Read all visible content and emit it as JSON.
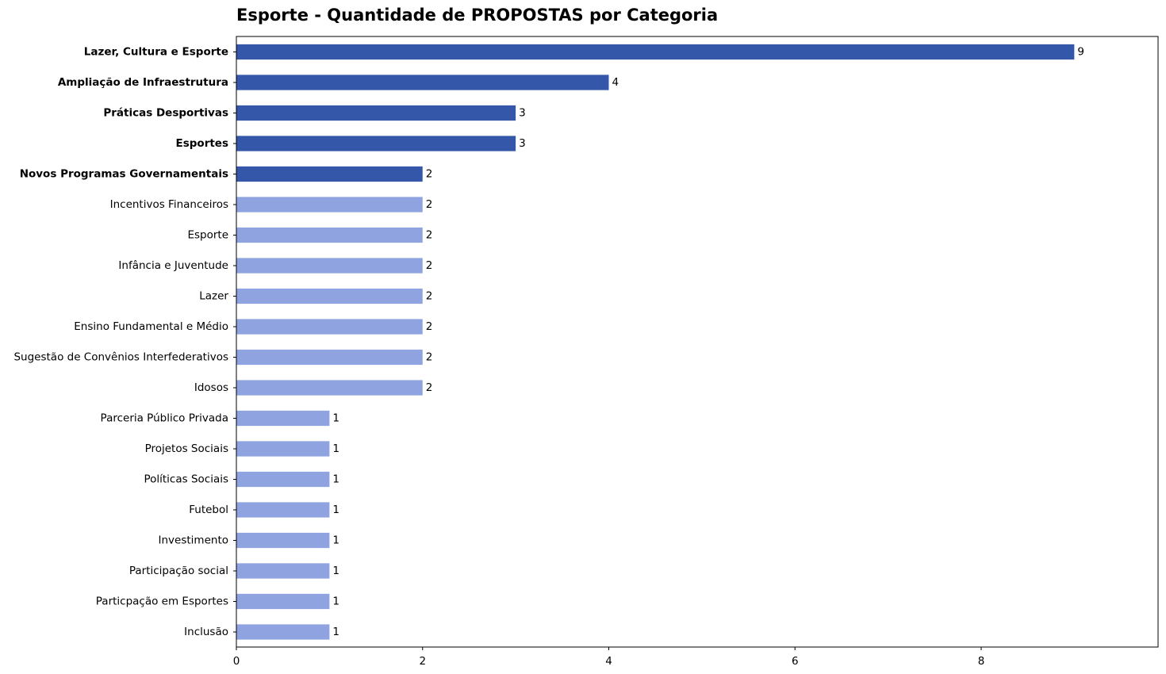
{
  "chart_data": {
    "type": "bar",
    "orientation": "horizontal",
    "title": "Esporte - Quantidade de PROPOSTAS por Categoria",
    "xlabel": "",
    "ylabel": "",
    "xlim": [
      0,
      9.9
    ],
    "x_ticks": [
      0,
      2,
      4,
      6,
      8
    ],
    "grid": false,
    "colors": {
      "highlight": "#3457a9",
      "normal": "#8fa3e1"
    },
    "categories": [
      "Lazer, Cultura e Esporte",
      "Ampliação de Infraestrutura",
      "Práticas Desportivas",
      "Esportes",
      "Novos Programas Governamentais",
      "Incentivos Financeiros",
      "Esporte",
      "Infância e Juventude",
      "Lazer",
      "Ensino Fundamental e Médio",
      "Sugestão de Convênios Interfederativos",
      "Idosos",
      "Parceria Público Privada",
      "Projetos Sociais",
      "Políticas Sociais",
      "Futebol",
      "Investimento",
      "Participação social",
      "Particpação em Esportes",
      "Inclusão"
    ],
    "values": [
      9,
      4,
      3,
      3,
      2,
      2,
      2,
      2,
      2,
      2,
      2,
      2,
      1,
      1,
      1,
      1,
      1,
      1,
      1,
      1
    ],
    "highlighted": [
      true,
      true,
      true,
      true,
      true,
      false,
      false,
      false,
      false,
      false,
      false,
      false,
      false,
      false,
      false,
      false,
      false,
      false,
      false,
      false
    ]
  }
}
